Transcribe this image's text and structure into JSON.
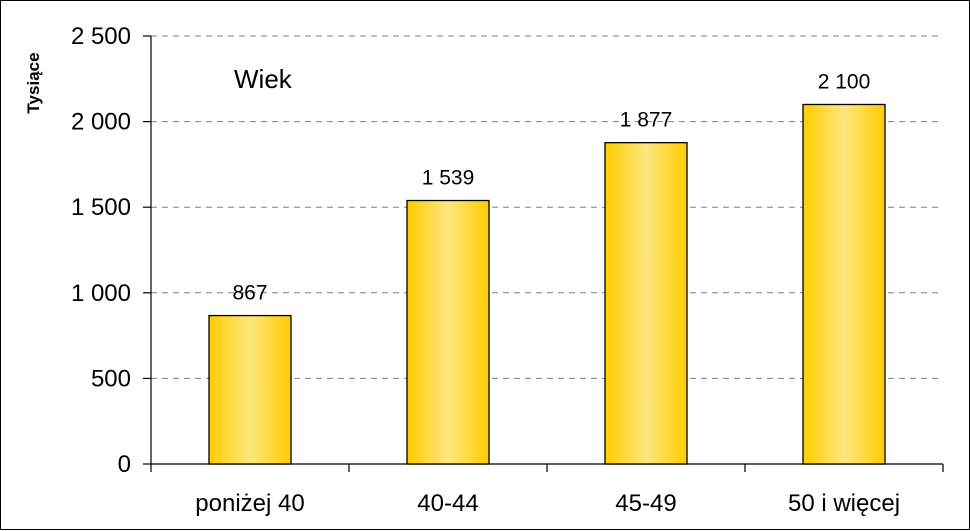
{
  "chart_data": {
    "type": "bar",
    "title": "",
    "xlabel": "",
    "ylabel": "Tysiące",
    "annotation": "Wiek",
    "categories": [
      "poniżej 40",
      "40-44",
      "45-49",
      "50 i więcej"
    ],
    "values": [
      867,
      1539,
      1877,
      2100
    ],
    "value_labels": [
      "867",
      "1 539",
      "1 877",
      "2 100"
    ],
    "ylim": [
      0,
      2500
    ],
    "yticks": [
      0,
      500,
      1000,
      1500,
      2000,
      2500
    ],
    "ytick_labels": [
      "0",
      "500",
      "1 000",
      "1 500",
      "2 000",
      "2 500"
    ],
    "grid": true,
    "legend": "none",
    "colors": {
      "bar_edge": "#ffcc00",
      "bar_center": "#ffe680",
      "outline": "#000000",
      "grid": "#808080"
    }
  }
}
